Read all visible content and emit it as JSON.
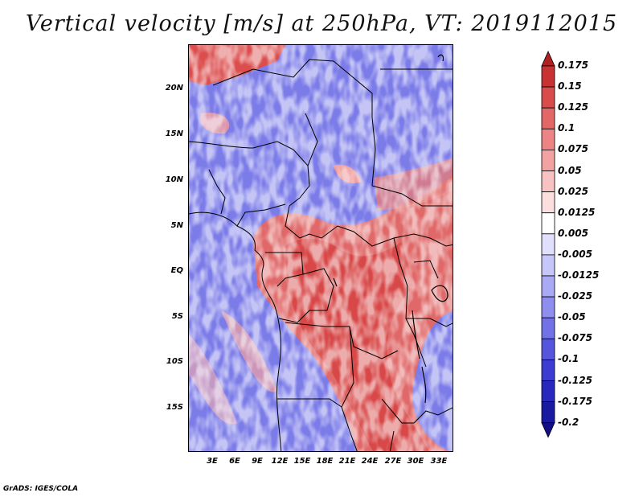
{
  "title": "Vertical velocity [m/s] at 250hPa, VT: 2019112015",
  "credit": "GrADS: IGES/COLA",
  "map": {
    "lat_ticks": [
      "20N",
      "15N",
      "10N",
      "5N",
      "EQ",
      "5S",
      "10S",
      "15S"
    ],
    "lon_ticks": [
      "3E",
      "6E",
      "9E",
      "12E",
      "15E",
      "18E",
      "21E",
      "24E",
      "27E",
      "30E",
      "33E"
    ]
  },
  "colorbar": {
    "labels": [
      "0.175",
      "0.15",
      "0.125",
      "0.1",
      "0.075",
      "0.05",
      "0.025",
      "0.0125",
      "0.005",
      "-0.005",
      "-0.0125",
      "-0.025",
      "-0.05",
      "-0.075",
      "-0.1",
      "-0.125",
      "-0.175",
      "-0.2"
    ],
    "colors": [
      "#b02020",
      "#c93232",
      "#d84c4c",
      "#e26868",
      "#ec8484",
      "#f3a2a2",
      "#f8c2c2",
      "#fcdede",
      "#ffffff",
      "#e0e0fc",
      "#c6c6f8",
      "#aaaaf4",
      "#8e8eee",
      "#7272e6",
      "#5656dc",
      "#3c3cd0",
      "#2828bc",
      "#1a1aa0",
      "#140e86"
    ]
  },
  "colors": {
    "positive": "#dc4a4a",
    "negative": "#5a5ade"
  }
}
